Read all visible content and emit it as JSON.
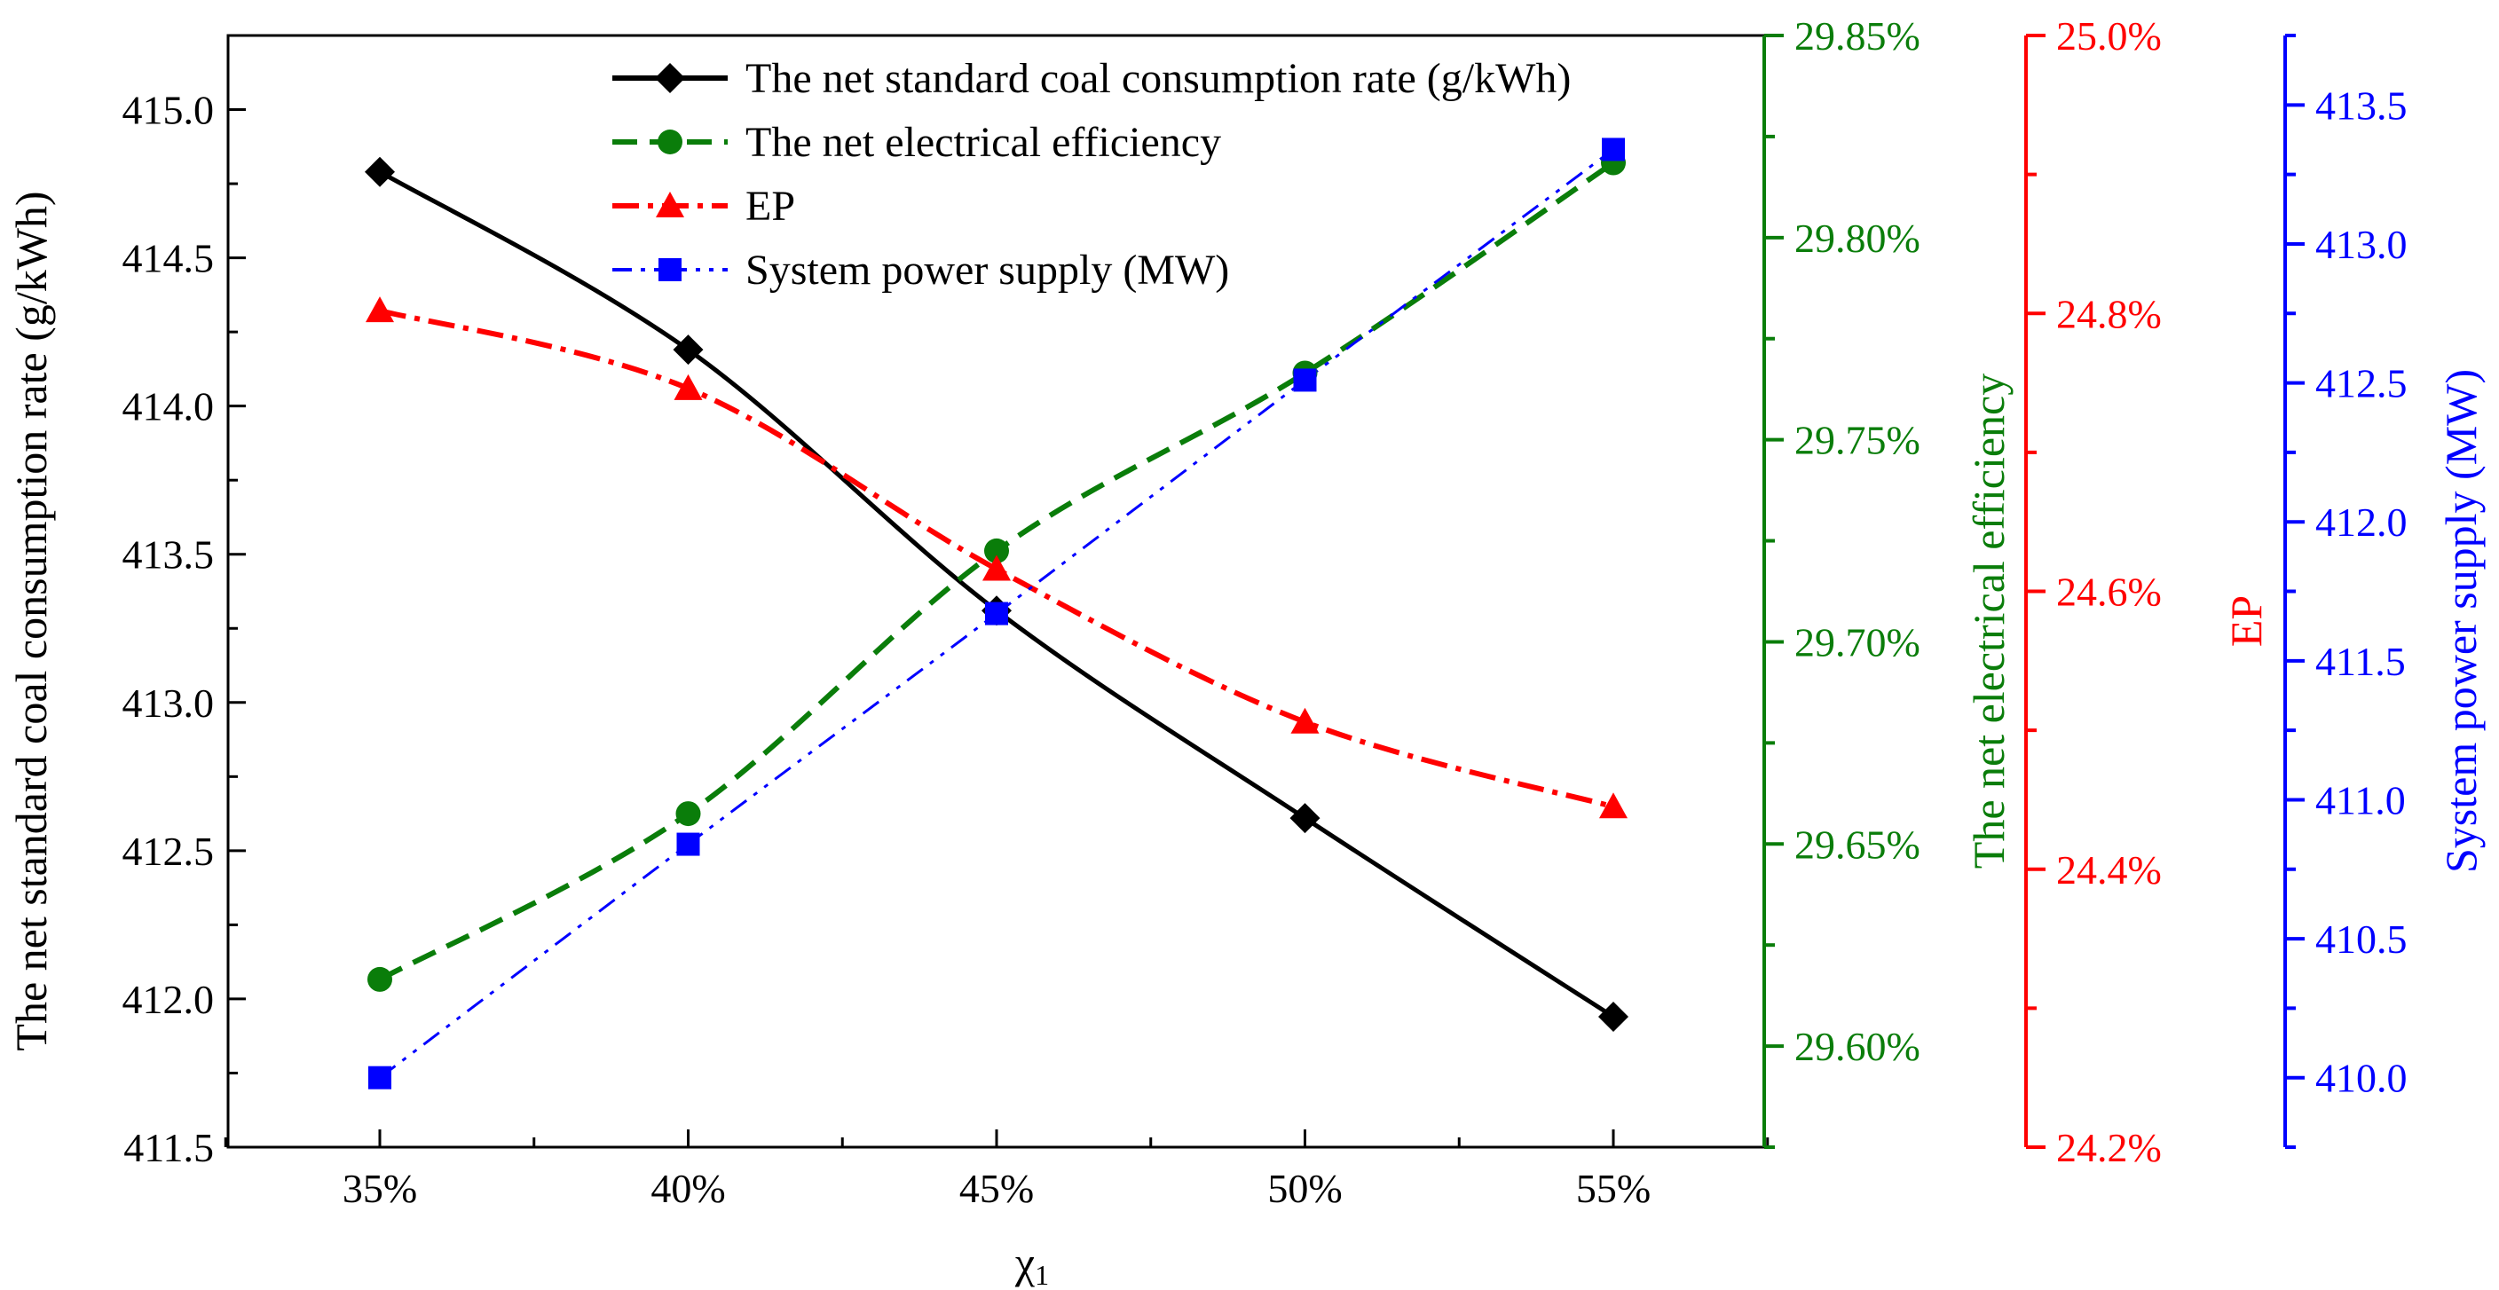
{
  "chart_data": {
    "type": "line",
    "categories": [
      "35%",
      "40%",
      "45%",
      "50%",
      "55%"
    ],
    "xlabel": "χ",
    "xlabel_subscript": "1",
    "series": [
      {
        "name": "The net standard coal consumption rate (g/kWh)",
        "axis": "left",
        "color": "#000000",
        "marker": "diamond",
        "line_style": "solid",
        "values": [
          414.79,
          414.19,
          413.31,
          412.61,
          411.94
        ]
      },
      {
        "name": "The net electrical efficiency",
        "axis": "right1",
        "color": "#0a7d0a",
        "marker": "circle",
        "line_style": "dashed",
        "values": [
          29.6165,
          29.6575,
          29.7225,
          29.7665,
          29.8185
        ]
      },
      {
        "name": "EP",
        "axis": "right2",
        "color": "#ff0000",
        "marker": "triangle",
        "line_style": "dashdot",
        "values": [
          24.802,
          24.746,
          24.616,
          24.506,
          24.445
        ]
      },
      {
        "name": "System power supply (MW)",
        "axis": "right3",
        "color": "#0000ff",
        "marker": "square",
        "line_style": "dashdotdot",
        "values": [
          410.0,
          410.84,
          411.67,
          412.51,
          413.34
        ]
      }
    ],
    "axes": {
      "left": {
        "label": "The net standard coal consumption rate (g/kWh)",
        "range": [
          411.5,
          415.25
        ],
        "ticks": [
          "411.5",
          "412.0",
          "412.5",
          "413.0",
          "413.5",
          "414.0",
          "414.5",
          "415.0"
        ],
        "color": "#000000"
      },
      "right1": {
        "label": "The net electrical efficiency",
        "range": [
          29.575,
          29.85
        ],
        "ticks": [
          "29.60%",
          "29.65%",
          "29.70%",
          "29.75%",
          "29.80%",
          "29.85%"
        ],
        "color": "#0a7d0a"
      },
      "right2": {
        "label": "EP",
        "range": [
          24.2,
          25.0
        ],
        "ticks": [
          "24.2%",
          "24.4%",
          "24.6%",
          "24.8%",
          "25.0%"
        ],
        "color": "#ff0000"
      },
      "right3": {
        "label": "System power supply (MW)",
        "range": [
          409.75,
          413.75
        ],
        "ticks": [
          "410.0",
          "410.5",
          "411.0",
          "411.5",
          "412.0",
          "412.5",
          "413.0",
          "413.5"
        ],
        "color": "#0000ff"
      }
    },
    "legend_position": "top"
  }
}
